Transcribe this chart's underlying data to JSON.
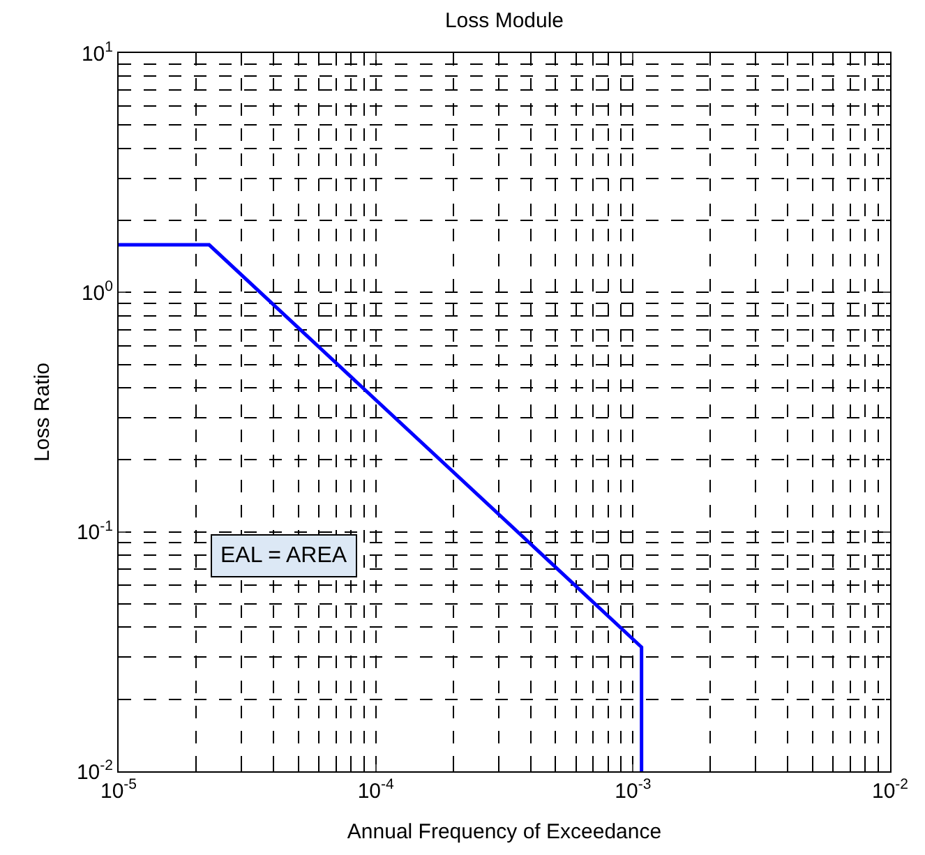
{
  "chart_data": {
    "type": "line",
    "title": "Loss Module",
    "xlabel": "Annual Frequency of Exceedance",
    "ylabel": "Loss Ratio",
    "annotations": [
      "EAL = AREA"
    ],
    "log": "xy",
    "grid": true,
    "marker": "none",
    "line_style": "solid",
    "x": [
      1e-05,
      2.25e-05,
      0.00108,
      0.00108
    ],
    "series": [
      {
        "color": "#0000ff",
        "values": [
          1.58,
          1.58,
          0.033,
          0.01
        ]
      }
    ],
    "xlim": [
      1e-05,
      0.01
    ],
    "ylim": [
      0.01,
      10.0
    ],
    "xticks": [
      {
        "value": 1e-05,
        "label": "10$^{-5}$"
      },
      {
        "value": 0.0001,
        "label": "10$^{-4}$"
      },
      {
        "value": 0.001,
        "label": "10$^{-3}$"
      },
      {
        "value": 0.01,
        "label": "10$^{-2}$"
      }
    ],
    "yticks": [
      {
        "value": 0.01,
        "label": "10$^{-2}$"
      },
      {
        "value": 0.1,
        "label": "10$^{-1}$"
      },
      {
        "value": 1,
        "label": "10$^{0}$"
      },
      {
        "value": 10,
        "label": "10$^{1}$"
      }
    ]
  }
}
